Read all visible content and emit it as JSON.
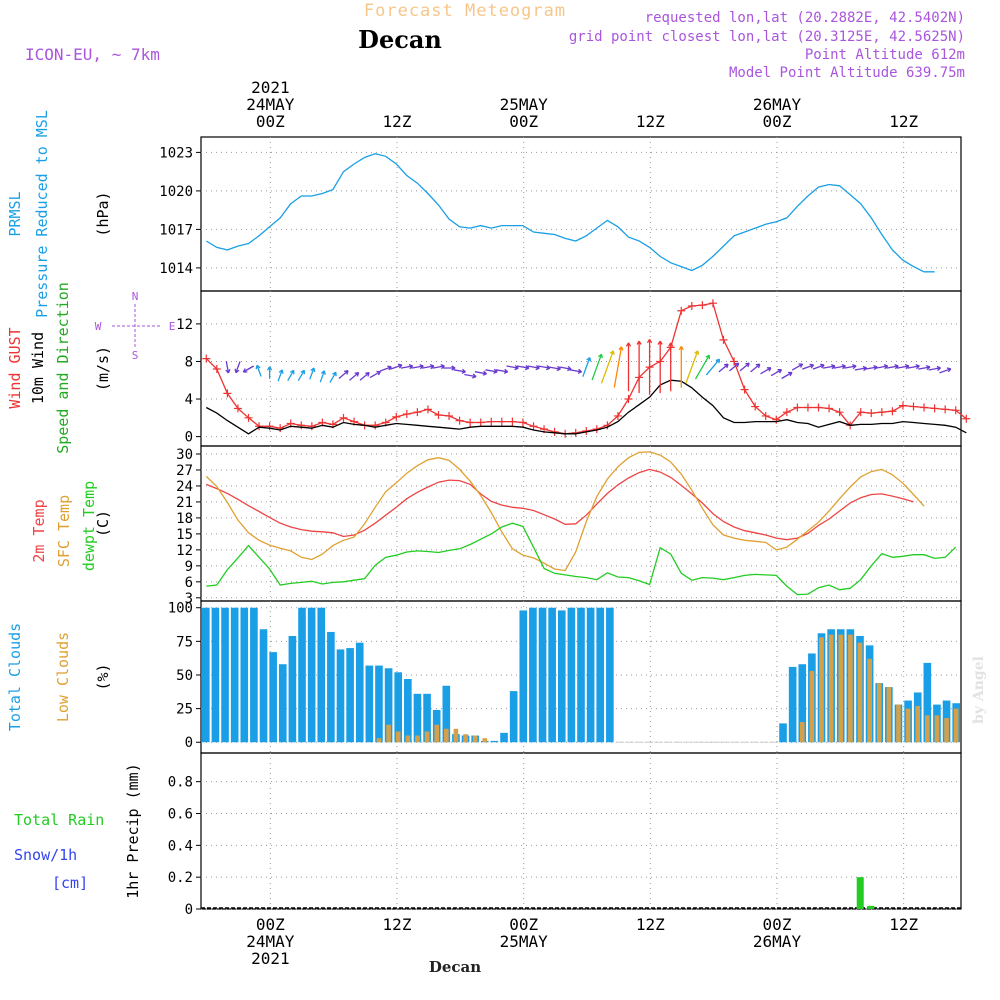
{
  "header": {
    "app_title": "Forecast Meteogram",
    "location": "Decan",
    "model": "ICON-EU, ~ 7km",
    "requested": "requested lon,lat (20.2882E, 42.5402N)",
    "grid_point": "grid point closest lon,lat (20.3125E, 42.5625N)",
    "point_alt": "Point Altitude 612m",
    "model_alt": "Model Point Altitude 639.75m",
    "footer_location": "Decan",
    "watermark": "by Angel"
  },
  "colors": {
    "pressure": "#1a9fe6",
    "gust": "#ee3333",
    "wind": "#000000",
    "temp2m": "#ee4444",
    "sfc": "#e0a030",
    "dewpt": "#22cc22",
    "total_clouds": "#1a9fe6",
    "low_clouds": "#d4a04a",
    "rain": "#22cc22",
    "snow": "#3344ee",
    "purple": "#aa55dd",
    "grid": "#999999"
  },
  "time_axis": {
    "steps": 72,
    "top_labels": [
      {
        "step": 6,
        "lines": [
          "2021",
          "24MAY",
          "00Z"
        ]
      },
      {
        "step": 18,
        "lines": [
          "12Z"
        ]
      },
      {
        "step": 30,
        "lines": [
          "25MAY",
          "00Z"
        ]
      },
      {
        "step": 42,
        "lines": [
          "12Z"
        ]
      },
      {
        "step": 54,
        "lines": [
          "26MAY",
          "00Z"
        ]
      },
      {
        "step": 66,
        "lines": [
          "12Z"
        ]
      }
    ],
    "bottom_labels": [
      {
        "step": 6,
        "lines": [
          "00Z",
          "24MAY",
          "2021"
        ]
      },
      {
        "step": 18,
        "lines": [
          "12Z"
        ]
      },
      {
        "step": 30,
        "lines": [
          "00Z",
          "25MAY"
        ]
      },
      {
        "step": 42,
        "lines": [
          "12Z"
        ]
      },
      {
        "step": 54,
        "lines": [
          "00Z",
          "26MAY"
        ]
      },
      {
        "step": 66,
        "lines": [
          "12Z"
        ]
      }
    ]
  },
  "chart_data": [
    {
      "type": "line",
      "name": "pressure",
      "left_labels": [
        "PRMSL",
        "Pressure Reduced to MSL"
      ],
      "unit": "(hPa)",
      "ylim": [
        1012.2,
        1024.2
      ],
      "yticks": [
        1014,
        1017,
        1020,
        1023
      ],
      "series": [
        {
          "name": "PRMSL",
          "values": [
            1016.1,
            1015.6,
            1015.4,
            1015.7,
            1015.9,
            1016.5,
            1017.2,
            1017.9,
            1019.0,
            1019.6,
            1019.6,
            1019.8,
            1020.1,
            1021.5,
            1022.1,
            1022.6,
            1022.9,
            1022.7,
            1022.1,
            1021.2,
            1020.6,
            1019.8,
            1018.9,
            1017.8,
            1017.2,
            1017.1,
            1017.3,
            1017.1,
            1017.3,
            1017.3,
            1017.3,
            1016.8,
            1016.7,
            1016.6,
            1016.3,
            1016.1,
            1016.5,
            1017.1,
            1017.7,
            1017.2,
            1016.4,
            1016.1,
            1015.6,
            1014.9,
            1014.4,
            1014.1,
            1013.8,
            1014.2,
            1014.9,
            1015.7,
            1016.5,
            1016.8,
            1017.1,
            1017.4,
            1017.6,
            1017.9,
            1018.8,
            1019.6,
            1020.3,
            1020.5,
            1020.4,
            1019.7,
            1019.0,
            1017.9,
            1016.6,
            1015.4,
            1014.6,
            1014.1,
            1013.7,
            1013.7
          ]
        }
      ]
    },
    {
      "type": "line",
      "name": "wind",
      "left_labels": [
        "Wind GUST",
        "10m Wind",
        "Speed and Direction"
      ],
      "unit": "(m/s)",
      "compass": {
        "n": "N",
        "w": "W",
        "e": "E",
        "s": "S"
      },
      "ylim": [
        -1,
        15.5
      ],
      "yticks": [
        0,
        4,
        8,
        12
      ],
      "series": [
        {
          "name": "Wind GUST",
          "values": [
            8.3,
            7.2,
            4.6,
            3.0,
            2.0,
            1.1,
            1.1,
            0.9,
            1.4,
            1.2,
            1.1,
            1.5,
            1.3,
            2.0,
            1.6,
            1.2,
            1.2,
            1.5,
            2.1,
            2.4,
            2.6,
            2.9,
            2.3,
            2.2,
            1.7,
            1.5,
            1.5,
            1.6,
            1.6,
            1.6,
            1.5,
            1.1,
            0.8,
            0.5,
            0.3,
            0.4,
            0.6,
            0.8,
            1.2,
            2.2,
            4.0,
            6.3,
            7.4,
            8.0,
            9.5,
            13.4,
            13.9,
            14.0,
            14.2,
            10.3,
            8.0,
            5.0,
            3.2,
            2.2,
            1.8,
            2.6,
            3.1,
            3.1,
            3.1,
            3.0,
            2.6,
            1.2,
            2.6,
            2.5,
            2.6,
            2.7,
            3.3,
            3.2,
            3.1,
            3.0,
            2.9,
            2.8,
            1.9
          ]
        },
        {
          "name": "10m Wind",
          "values": [
            3.1,
            2.5,
            1.7,
            1.0,
            0.3,
            1.0,
            0.9,
            0.7,
            1.1,
            1.0,
            0.9,
            1.2,
            1.0,
            1.5,
            1.3,
            1.2,
            1.0,
            1.2,
            1.4,
            1.3,
            1.2,
            1.1,
            1.0,
            0.9,
            0.8,
            1.0,
            1.1,
            1.1,
            1.1,
            1.1,
            1.0,
            0.7,
            0.5,
            0.4,
            0.3,
            0.3,
            0.5,
            0.7,
            1.0,
            1.6,
            2.6,
            3.4,
            4.2,
            5.5,
            6.0,
            5.9,
            5.2,
            4.2,
            3.3,
            2.0,
            1.5,
            1.5,
            1.6,
            1.6,
            1.6,
            1.8,
            1.5,
            1.4,
            1.0,
            1.3,
            1.6,
            1.2,
            1.3,
            1.3,
            1.4,
            1.4,
            1.6,
            1.5,
            1.4,
            1.3,
            1.2,
            1.0,
            0.4
          ]
        }
      ],
      "wind_arrows": {
        "speeds": [
          7.5,
          7.8,
          7.2,
          7.0,
          6.8,
          6.5,
          6.5,
          6.5,
          6.7,
          6.4,
          6.3,
          6.6,
          6.4,
          6.4,
          6.6,
          7.2,
          7.5,
          7.4,
          7.4,
          7.6,
          7.7,
          7.3,
          7.0,
          6.5,
          6.8,
          7.0,
          7.0,
          7.4,
          7.4,
          7.5,
          7.4,
          7.3,
          7.3,
          7.0,
          8.5,
          9.5,
          10.5,
          11.5,
          12.5,
          13.0,
          13.5,
          13.0,
          12.5,
          11.5,
          10.5,
          9.5,
          8.5,
          7.3,
          7.5,
          7.4,
          7.3,
          7.0,
          6.8,
          6.5,
          7.6,
          7.5,
          7.6,
          7.8,
          7.7,
          7.5,
          7.2,
          7.3,
          7.4,
          7.6,
          7.6,
          7.5,
          7.3,
          7.2,
          7.0
        ],
        "dirs": [
          350,
          20,
          60,
          160,
          180,
          200,
          210,
          210,
          200,
          200,
          210,
          230,
          230,
          230,
          240,
          250,
          250,
          260,
          260,
          260,
          260,
          270,
          280,
          280,
          280,
          280,
          280,
          280,
          280,
          280,
          280,
          280,
          280,
          280,
          200,
          200,
          200,
          190,
          180,
          180,
          180,
          180,
          180,
          180,
          200,
          210,
          220,
          230,
          230,
          230,
          230,
          240,
          240,
          240,
          240,
          250,
          250,
          260,
          260,
          260,
          260,
          260,
          260,
          260,
          260,
          260,
          260,
          260,
          250
        ]
      }
    },
    {
      "type": "line",
      "name": "temperature",
      "left_labels": [
        "2m Temp",
        "SFC Temp",
        "dewpt Temp"
      ],
      "unit": "(C)",
      "ylim": [
        2.4,
        31.5
      ],
      "yticks": [
        3,
        6,
        9,
        12,
        15,
        18,
        21,
        24,
        27,
        30
      ],
      "series": [
        {
          "name": "2m Temp",
          "values": [
            24.3,
            23.5,
            22.6,
            21.5,
            20.3,
            19.2,
            18.1,
            17.0,
            16.3,
            15.8,
            15.5,
            15.4,
            15.2,
            14.5,
            14.8,
            15.7,
            17.0,
            18.5,
            20.0,
            21.6,
            22.8,
            23.8,
            24.7,
            25.1,
            25.0,
            24.3,
            22.5,
            21.1,
            20.4,
            20.0,
            19.8,
            19.4,
            18.6,
            17.8,
            16.8,
            16.9,
            18.5,
            20.6,
            22.6,
            24.2,
            25.5,
            26.5,
            27.1,
            26.6,
            25.6,
            24.1,
            22.5,
            20.8,
            18.8,
            17.3,
            16.3,
            15.6,
            15.2,
            14.8,
            14.2,
            13.9,
            14.2,
            15.1,
            16.6,
            17.8,
            19.3,
            20.8,
            21.8,
            22.4,
            22.5,
            22.1,
            21.6,
            21.0
          ]
        },
        {
          "name": "SFC Temp",
          "values": [
            25.8,
            23.9,
            20.9,
            17.6,
            15.2,
            13.8,
            12.9,
            12.3,
            11.8,
            10.6,
            10.2,
            11.2,
            12.8,
            13.8,
            14.4,
            16.9,
            20.0,
            22.9,
            24.6,
            26.4,
            27.8,
            28.9,
            29.3,
            28.8,
            27.1,
            24.9,
            22.2,
            19.0,
            15.4,
            12.2,
            11.0,
            10.5,
            9.5,
            8.4,
            8.1,
            11.6,
            17.3,
            22.0,
            25.3,
            27.6,
            29.3,
            30.3,
            30.4,
            29.8,
            28.5,
            26.2,
            23.2,
            19.8,
            16.7,
            14.8,
            14.2,
            13.8,
            13.6,
            13.4,
            12.0,
            12.5,
            14.0,
            15.6,
            17.2,
            19.3,
            21.6,
            23.8,
            25.7,
            26.7,
            27.1,
            26.1,
            24.5,
            22.4,
            20.2
          ]
        },
        {
          "name": "dewpt Temp",
          "values": [
            5.2,
            5.4,
            8.3,
            10.5,
            12.8,
            10.6,
            8.4,
            5.4,
            5.7,
            5.9,
            6.1,
            5.6,
            5.9,
            6.0,
            6.3,
            6.6,
            9.1,
            10.6,
            11.0,
            11.6,
            11.8,
            11.7,
            11.5,
            11.9,
            12.2,
            13.0,
            14.0,
            15.0,
            16.3,
            17.0,
            16.4,
            12.5,
            8.5,
            7.6,
            7.3,
            7.0,
            6.8,
            6.4,
            7.7,
            6.9,
            6.8,
            6.2,
            5.5,
            12.4,
            11.2,
            7.6,
            6.3,
            6.8,
            6.7,
            6.4,
            6.8,
            7.2,
            7.4,
            7.3,
            7.2,
            5.2,
            3.6,
            3.7,
            4.9,
            5.4,
            4.5,
            4.8,
            6.4,
            9.0,
            11.3,
            10.6,
            10.8,
            11.1,
            11.1,
            10.4,
            10.6,
            12.5
          ]
        }
      ]
    },
    {
      "type": "bar",
      "name": "clouds",
      "left_labels": [
        "Total Clouds",
        "Low Clouds"
      ],
      "unit": "(%)",
      "ylim": [
        -8,
        105
      ],
      "yticks": [
        0,
        25,
        50,
        75,
        100
      ],
      "series": [
        {
          "name": "Total Clouds",
          "values": [
            100,
            100,
            100,
            100,
            100,
            100,
            84,
            67,
            58,
            79,
            100,
            100,
            100,
            82,
            69,
            70,
            74,
            57,
            57,
            55,
            52,
            47,
            36,
            36,
            24,
            42,
            6,
            5,
            5,
            1,
            1,
            7,
            38,
            98,
            100,
            100,
            100,
            98,
            100,
            100,
            100,
            100,
            100,
            0,
            0,
            0,
            0,
            0,
            0,
            0,
            0,
            0,
            0,
            0,
            0,
            0,
            0,
            0,
            0,
            0,
            14,
            56,
            58,
            66,
            81,
            84,
            84,
            84,
            79,
            72,
            44,
            41,
            28,
            31,
            37,
            59,
            28,
            31,
            29
          ]
        },
        {
          "name": "Low Clouds",
          "values": [
            0,
            0,
            0,
            0,
            0,
            0,
            0,
            0,
            0,
            0,
            0,
            0,
            0,
            0,
            0,
            0,
            0,
            0,
            3,
            13,
            8,
            5,
            5,
            8,
            13,
            10,
            10,
            6,
            5,
            3,
            0,
            0,
            0,
            0,
            0,
            0,
            0,
            0,
            0,
            0,
            0,
            0,
            0,
            0,
            0,
            0,
            0,
            0,
            0,
            0,
            0,
            0,
            0,
            0,
            0,
            0,
            0,
            0,
            0,
            0,
            0,
            0,
            15,
            53,
            78,
            80,
            80,
            80,
            74,
            62,
            44,
            41,
            28,
            25,
            27,
            20,
            20,
            18,
            25
          ]
        }
      ]
    },
    {
      "type": "bar",
      "name": "precip",
      "left_labels": [
        "Total  Rain",
        "Snow/1h",
        "[cm]"
      ],
      "unit": "1hr Precip (mm)",
      "ylim": [
        0,
        0.98
      ],
      "yticks": [
        0,
        0.2,
        0.4,
        0.6,
        0.8
      ],
      "series": [
        {
          "name": "Total Rain",
          "values": [
            0,
            0,
            0,
            0,
            0,
            0,
            0,
            0,
            0,
            0,
            0,
            0,
            0,
            0,
            0,
            0,
            0,
            0,
            0,
            0,
            0,
            0,
            0,
            0,
            0,
            0,
            0,
            0,
            0,
            0,
            0,
            0,
            0,
            0,
            0,
            0,
            0,
            0,
            0,
            0,
            0,
            0,
            0,
            0,
            0,
            0,
            0,
            0,
            0,
            0,
            0,
            0,
            0,
            0,
            0,
            0,
            0,
            0,
            0,
            0,
            0,
            0,
            0.2,
            0.02,
            0,
            0,
            0,
            0,
            0,
            0,
            0,
            0
          ]
        }
      ]
    }
  ]
}
